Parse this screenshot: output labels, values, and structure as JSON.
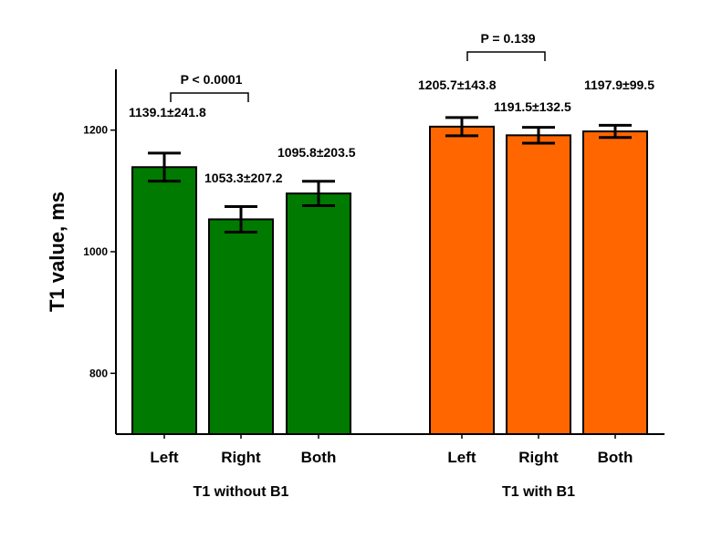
{
  "chart_data": {
    "type": "bar",
    "title": "",
    "ylabel": "T1 value, ms",
    "xlabel": "",
    "ylim": [
      700,
      1300
    ],
    "yticks": [
      800,
      1000,
      1200
    ],
    "grid": false,
    "legend": "none",
    "groups": [
      {
        "name": "T1 without B1",
        "color": "#007A00",
        "categories": [
          "Left",
          "Right",
          "Both"
        ],
        "values": [
          1139.1,
          1053.3,
          1095.8
        ],
        "sd": [
          241.8,
          207.2,
          203.5
        ],
        "error_bar": [
          23,
          21,
          20
        ],
        "data_labels": [
          "1139.1±241.8",
          "1053.3±207.2",
          "1095.8±203.5"
        ],
        "comparison": {
          "between": [
            "Left",
            "Right"
          ],
          "label": "P < 0.0001"
        }
      },
      {
        "name": "T1 with B1",
        "color": "#FF6600",
        "categories": [
          "Left",
          "Right",
          "Both"
        ],
        "values": [
          1205.7,
          1191.5,
          1197.9
        ],
        "sd": [
          143.8,
          132.5,
          99.5
        ],
        "error_bar": [
          15,
          13,
          10
        ],
        "data_labels": [
          "1205.7±143.8",
          "1191.5±132.5",
          "1197.9±99.5"
        ],
        "comparison": {
          "between": [
            "Left",
            "Right"
          ],
          "label": "P = 0.139"
        }
      }
    ]
  }
}
